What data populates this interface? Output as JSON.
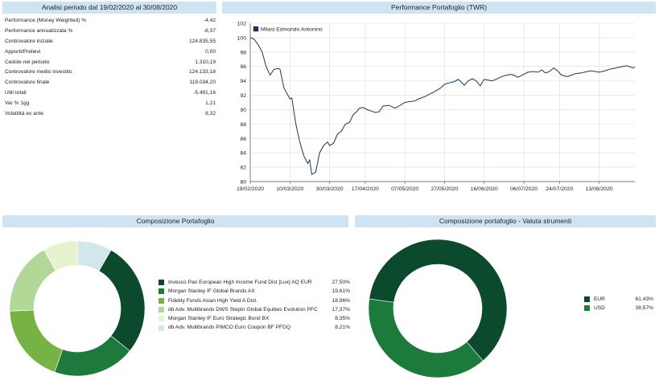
{
  "analisi": {
    "title": "Analisi periodo dal 19/02/2020 al 30/08/2020",
    "rows": [
      {
        "label": "Performance (Money Weighted) %",
        "value": "-4,42"
      },
      {
        "label": "Performance annualizzata %",
        "value": "-8,37"
      },
      {
        "label": "Controvalore iniziale",
        "value": "124.835,55"
      },
      {
        "label": "Apporti/Prelievi",
        "value": "0,00"
      },
      {
        "label": "Cedole nel periodo",
        "value": "1.310,19"
      },
      {
        "label": "Controvalore medio investito",
        "value": "124.133,18"
      },
      {
        "label": "Controvalore finale",
        "value": "118.034,20"
      },
      {
        "label": "Utili totali",
        "value": "-5.491,16"
      },
      {
        "label": "Var % 1gg",
        "value": "1,21"
      },
      {
        "label": "Volatilità ex ante",
        "value": "8,32"
      }
    ]
  },
  "performance": {
    "title": "Performance Portafoglio (TWR)",
    "chart_data": {
      "type": "line",
      "title": "Performance Portafoglio (TWR)",
      "legend": "Milasi Edmondo Antonino",
      "legend_color": "#17375e",
      "ylim": [
        80,
        102
      ],
      "yticks": [
        "80",
        "82",
        "84",
        "86",
        "88",
        "90",
        "92",
        "94",
        "96",
        "98",
        "100",
        "102"
      ],
      "xticks": [
        "19/02/2020",
        "10/03/2020",
        "30/03/2020",
        "17/04/2020",
        "07/05/2020",
        "27/05/2020",
        "16/06/2020",
        "06/07/2020",
        "24/07/2020",
        "13/08/2020"
      ],
      "xtick_days": [
        0,
        20,
        40,
        58,
        78,
        98,
        118,
        138,
        156,
        176
      ],
      "x_days": [
        0,
        2,
        4,
        6,
        8,
        10,
        12,
        14,
        15,
        17,
        19,
        20,
        21,
        23,
        25,
        27,
        29,
        30,
        31,
        33,
        35,
        37,
        39,
        40,
        42,
        44,
        46,
        48,
        50,
        52,
        54,
        55,
        57,
        59,
        61,
        63,
        65,
        67,
        70,
        73,
        75,
        78,
        80,
        83,
        85,
        88,
        90,
        93,
        96,
        98,
        100,
        103,
        105,
        108,
        110,
        112,
        114,
        116,
        118,
        120,
        122,
        124,
        126,
        128,
        131,
        133,
        135,
        138,
        140,
        143,
        145,
        147,
        149,
        151,
        153,
        155,
        157,
        160,
        162,
        164,
        167,
        170,
        172,
        174,
        176,
        179,
        181,
        183,
        186,
        188,
        190,
        193,
        194
      ],
      "values": [
        100,
        99.8,
        99,
        98,
        96,
        94.8,
        95.6,
        95.7,
        95.6,
        93,
        92,
        91.5,
        91.6,
        88,
        85.5,
        83.6,
        82.5,
        83,
        81,
        81.3,
        84,
        85,
        85.5,
        85,
        85.3,
        86.6,
        87,
        88,
        88.2,
        89.3,
        89.8,
        90.2,
        90.3,
        90,
        89.8,
        89.6,
        89.7,
        90.5,
        90.6,
        90.2,
        90.5,
        91,
        91.1,
        91.2,
        91.5,
        91.8,
        92.1,
        92.5,
        93,
        93.5,
        93.7,
        93.9,
        94.2,
        93.4,
        94,
        94.3,
        94,
        93.3,
        94.2,
        94.1,
        94,
        94.2,
        94.5,
        94.7,
        94.9,
        94.8,
        94.5,
        94.9,
        95.2,
        95.3,
        95.2,
        95.5,
        95.1,
        95.3,
        95.8,
        95.4,
        94.8,
        94.6,
        94.8,
        95,
        95.1,
        95.3,
        95.4,
        95.3,
        95.2,
        95.4,
        95.6,
        95.7,
        95.9,
        96,
        96.1,
        95.8,
        95.9
      ]
    }
  },
  "composizione": {
    "title": "Composizione Portafoglio",
    "chart_data": {
      "type": "pie",
      "style": "donut",
      "labels": [
        "Invesco Pan European High Income Fund Dist [Lux] AQ EUR",
        "Morgan Stanley IF Global Brands AX",
        "Fidelity Funds Asian High Yield A Dist.",
        "db Adv. Multibrands DWS StepIn Global Equities Evolution PFC",
        "Morgan Stanley IF Euro Strategic Bond BX",
        "db Adv. Multibrands PIMCO Euro Coupon BF PFDQ"
      ],
      "values": [
        27.5,
        19.61,
        18.96,
        17.37,
        8.35,
        8.21
      ],
      "value_labels": [
        "27,50%",
        "19,61%",
        "18,96%",
        "17,37%",
        "8,35%",
        "8,21%"
      ],
      "colors": [
        "#0b4a2c",
        "#1d7a3d",
        "#76b244",
        "#b2d898",
        "#e7f2cf",
        "#d2e7ea"
      ]
    }
  },
  "valuta": {
    "title": "Composizione portafoglio - Valuta strumenti",
    "chart_data": {
      "type": "pie",
      "style": "donut",
      "labels": [
        "EUR",
        "USD"
      ],
      "values": [
        61.43,
        38.57
      ],
      "value_labels": [
        "61,43%",
        "38,57%"
      ],
      "colors": [
        "#0b4a2c",
        "#1d7a3d"
      ]
    }
  }
}
